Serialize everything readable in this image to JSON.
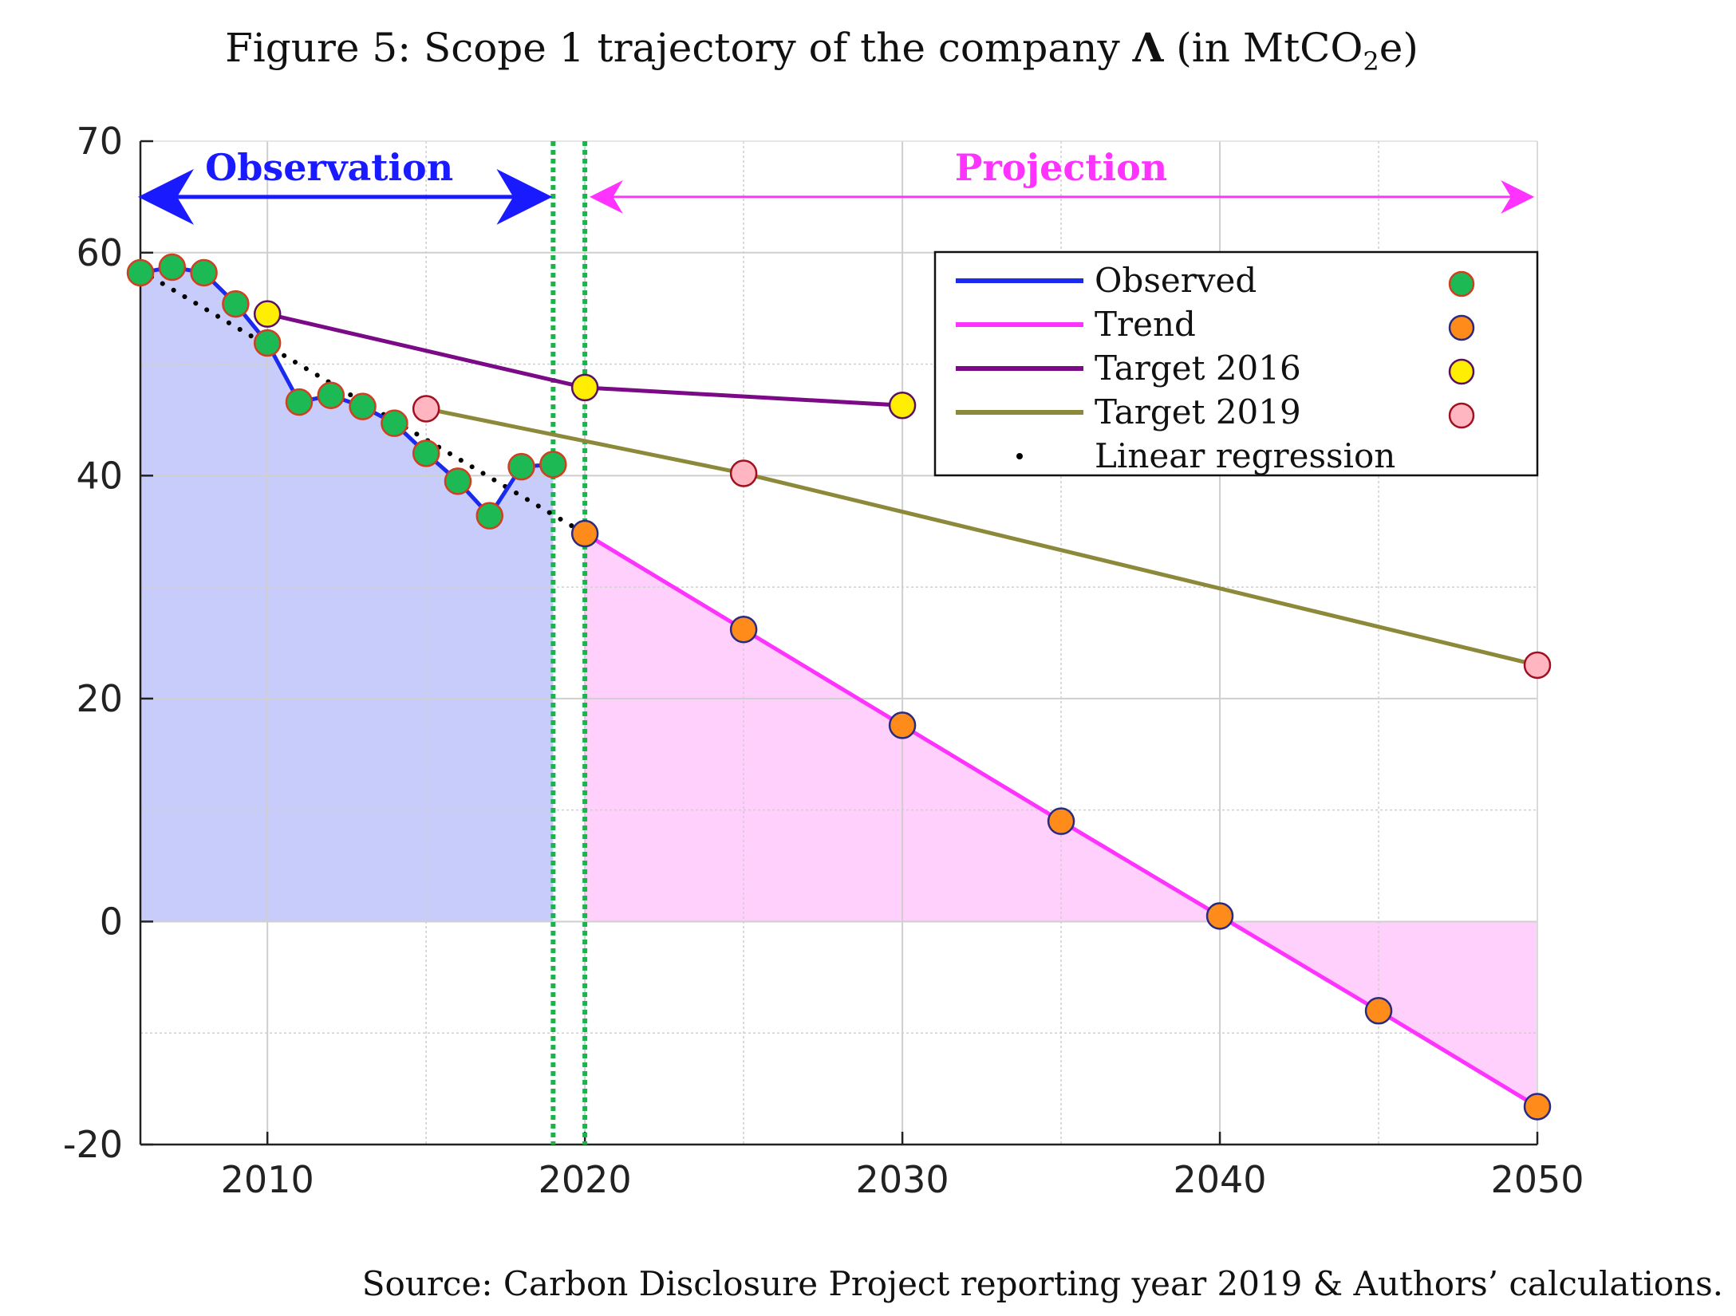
{
  "figure": {
    "title_prefix": "Figure 5: Scope 1 trajectory of the company ",
    "title_symbol": "Λ",
    "title_suffix_a": " (in MtCO",
    "title_sub": "2",
    "title_suffix_b": "e)",
    "source": "Source: Carbon Disclosure Project reporting year 2019 & Authors’ calculations."
  },
  "chart_data": {
    "type": "line",
    "xlim": [
      2006,
      2050
    ],
    "ylim": [
      -20,
      70
    ],
    "x_ticks": [
      2010,
      2020,
      2030,
      2040,
      2050
    ],
    "x_tick_labels": [
      "2010",
      "2020",
      "2030",
      "2040",
      "2050"
    ],
    "y_ticks": [
      -20,
      0,
      20,
      40,
      60,
      70
    ],
    "y_tick_labels": [
      "-20",
      "0",
      "20",
      "40",
      "60",
      "70"
    ],
    "grid": true,
    "regions": {
      "observation_label": "Observation",
      "projection_label": "Projection",
      "observation_range": [
        2006,
        2019
      ],
      "projection_range": [
        2020,
        2050
      ],
      "observation_color": "#1a1aff",
      "projection_color": "#ff33ff"
    },
    "vertical_lines": [
      2019,
      2020
    ],
    "series": [
      {
        "name": "Observed",
        "color": "#1a2aee",
        "marker_color": "#1db954",
        "x": [
          2006,
          2007,
          2008,
          2009,
          2010,
          2011,
          2012,
          2013,
          2014,
          2015,
          2016,
          2017,
          2018,
          2019
        ],
        "y": [
          58.2,
          58.7,
          58.2,
          55.4,
          51.9,
          46.6,
          47.2,
          46.2,
          44.7,
          42.0,
          39.5,
          36.4,
          40.8,
          41.0
        ]
      },
      {
        "name": "Trend",
        "color": "#ff33ff",
        "marker_color": "#ff8c1a",
        "x": [
          2020,
          2025,
          2030,
          2035,
          2040,
          2045,
          2050
        ],
        "y": [
          34.8,
          26.2,
          17.6,
          9.0,
          0.5,
          -8.0,
          -16.6
        ]
      },
      {
        "name": "Target 2016",
        "color": "#7b0a87",
        "marker_color": "#ffee00",
        "x": [
          2010,
          2020,
          2030
        ],
        "y": [
          54.5,
          47.9,
          46.3
        ]
      },
      {
        "name": "Target 2019",
        "color": "#8c8a3a",
        "marker_color": "#ffb6c1",
        "x": [
          2015,
          2025,
          2050
        ],
        "y": [
          46.0,
          40.2,
          23.0
        ]
      },
      {
        "name": "Linear regression",
        "color": "#000000",
        "x": [
          2006,
          2020
        ],
        "y": [
          58.4,
          34.8
        ]
      }
    ],
    "legend_position": "top-right"
  }
}
